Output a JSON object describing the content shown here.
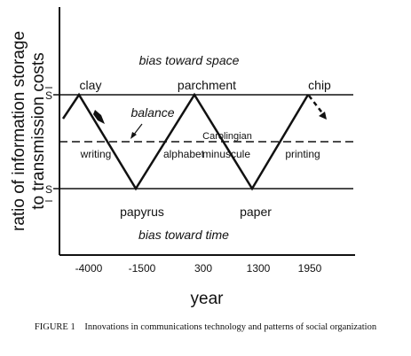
{
  "y_axis_title_lines": [
    "ratio of information storage",
    "to transmission costs"
  ],
  "y_axis_ticks": [
    "S",
    "S"
  ],
  "x_axis_title": "year",
  "x_ticks": [
    "-4000",
    "-1500",
    "300",
    "1300",
    "1950"
  ],
  "regions": {
    "top": "bias toward space",
    "middle": "balance",
    "bottom": "bias toward time"
  },
  "peaks": [
    "clay",
    "parchment",
    "chip"
  ],
  "troughs": [
    "papyrus",
    "paper"
  ],
  "segments": [
    "writing",
    "alphabet",
    "Carolingian",
    "minuscule",
    "printing"
  ],
  "caption": {
    "figure": "FIGURE 1",
    "text": "Innovations in communications technology and patterns of social organization"
  }
}
